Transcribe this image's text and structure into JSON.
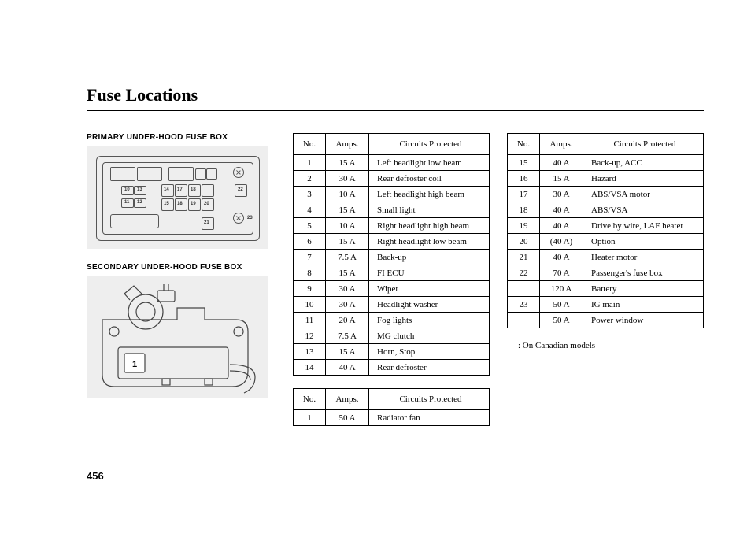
{
  "title": "Fuse Locations",
  "page_number": "456",
  "primary_heading": "PRIMARY UNDER-HOOD FUSE BOX",
  "secondary_heading": "SECONDARY UNDER-HOOD FUSE BOX",
  "note": ": On Canadian models",
  "table_headers": {
    "no": "No.",
    "amps": "Amps.",
    "circuits": "Circuits Protected"
  },
  "table1": [
    {
      "no": "1",
      "amps": "15 A",
      "circuits": "Left headlight low beam"
    },
    {
      "no": "2",
      "amps": "30 A",
      "circuits": "Rear defroster coil"
    },
    {
      "no": "3",
      "amps": "10 A",
      "circuits": "Left headlight high beam"
    },
    {
      "no": "4",
      "amps": "15 A",
      "circuits": "Small light"
    },
    {
      "no": "5",
      "amps": "10 A",
      "circuits": "Right headlight high beam"
    },
    {
      "no": "6",
      "amps": "15 A",
      "circuits": "Right headlight low beam"
    },
    {
      "no": "7",
      "amps": "7.5 A",
      "circuits": "Back-up"
    },
    {
      "no": "8",
      "amps": "15 A",
      "circuits": "FI ECU"
    },
    {
      "no": "9",
      "amps": "30 A",
      "circuits": "Wiper"
    },
    {
      "no": "10",
      "amps": "30 A",
      "circuits": "Headlight washer"
    },
    {
      "no": "11",
      "amps": "20 A",
      "circuits": "Fog lights"
    },
    {
      "no": "12",
      "amps": "7.5 A",
      "circuits": "MG clutch"
    },
    {
      "no": "13",
      "amps": "15 A",
      "circuits": "Horn, Stop"
    },
    {
      "no": "14",
      "amps": "40 A",
      "circuits": "Rear defroster"
    }
  ],
  "table2": [
    {
      "no": "1",
      "amps": "50 A",
      "circuits": "Radiator fan"
    }
  ],
  "table3": [
    {
      "no": "15",
      "amps": "40 A",
      "circuits": "Back-up, ACC"
    },
    {
      "no": "16",
      "amps": "15 A",
      "circuits": "Hazard"
    },
    {
      "no": "17",
      "amps": "30 A",
      "circuits": "ABS/VSA motor"
    },
    {
      "no": "18",
      "amps": "40 A",
      "circuits": "ABS/VSA"
    },
    {
      "no": "19",
      "amps": "40 A",
      "circuits": "Drive by wire, LAF heater"
    },
    {
      "no": "20",
      "amps": "(40 A)",
      "circuits": "Option"
    },
    {
      "no": "21",
      "amps": "40 A",
      "circuits": "Heater motor"
    },
    {
      "no": "22",
      "amps": "70 A",
      "circuits": "Passenger's fuse box"
    },
    {
      "no": "",
      "amps": "120 A",
      "circuits": "Battery"
    },
    {
      "no": "23",
      "amps": "50 A",
      "circuits": "IG main"
    },
    {
      "no": "",
      "amps": "50 A",
      "circuits": "Power window"
    }
  ]
}
